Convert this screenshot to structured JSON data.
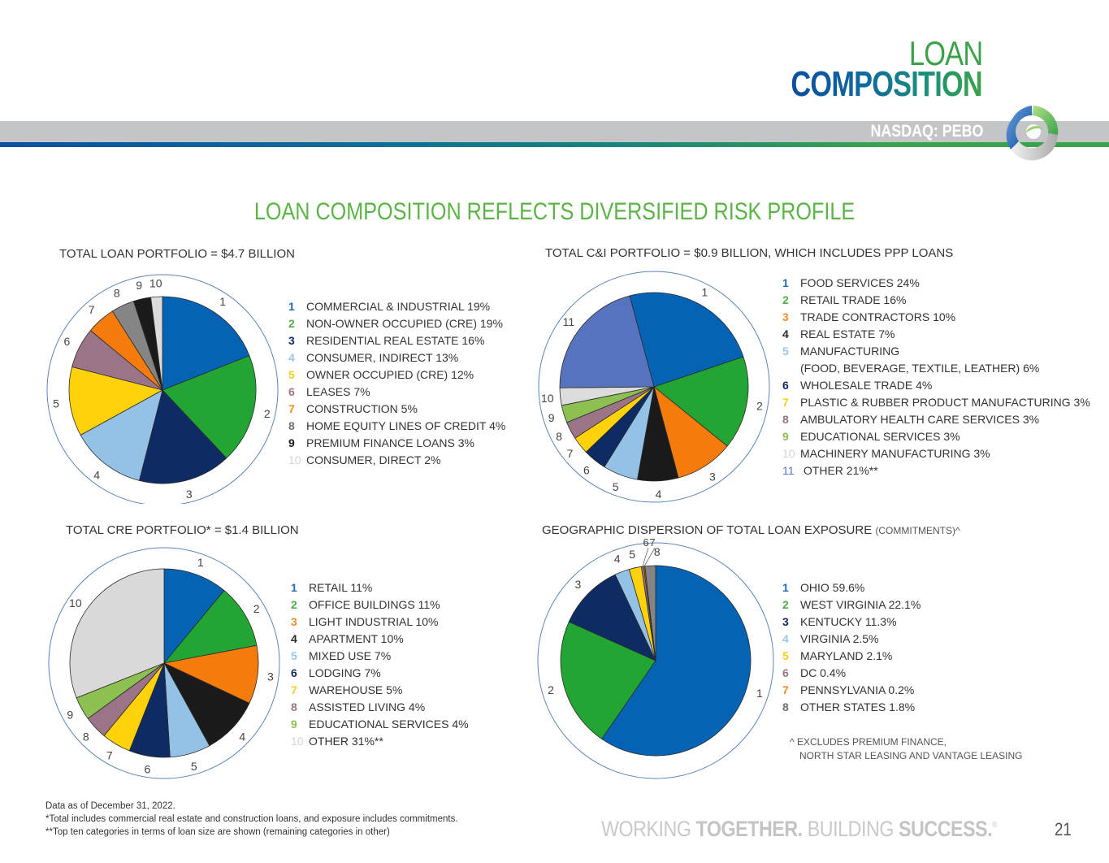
{
  "header": {
    "title_line1": "LOAN",
    "title_line2": "COMPOSITION",
    "ticker": "NASDAQ: PEBO",
    "logo": "peoples-bancorp-swirl-logo"
  },
  "main_heading": "LOAN COMPOSITION REFLECTS DIVERSIFIED RISK PROFILE",
  "colors": {
    "heading_green": "#5bb446",
    "brand_blue": "#0b4ea2",
    "brand_green": "#3aa34a",
    "outer_ring": "#5b86b8"
  },
  "chart_data": [
    {
      "type": "pie",
      "title": "TOTAL LOAN PORTFOLIO = $4.7 BILLION",
      "categories": [
        "COMMERCIAL & INDUSTRIAL",
        "NON-OWNER OCCUPIED (CRE)",
        "RESIDENTIAL REAL ESTATE",
        "CONSUMER, INDIRECT",
        "OWNER OCCUPIED (CRE)",
        "LEASES",
        "CONSTRUCTION",
        "HOME EQUITY LINES OF CREDIT",
        "PREMIUM FINANCE LOANS",
        "CONSUMER, DIRECT"
      ],
      "values": [
        19,
        19,
        16,
        13,
        12,
        7,
        5,
        4,
        3,
        2
      ],
      "unit": "%",
      "slice_labels": [
        "1",
        "2",
        "3",
        "4",
        "5",
        "6",
        "7",
        "8",
        "9",
        "10"
      ],
      "legend_numbers": [
        "1",
        "2",
        "3",
        "4",
        "5",
        "6",
        "7",
        "8",
        "9",
        "10"
      ],
      "legend_text": [
        "COMMERCIAL & INDUSTRIAL 19%",
        "NON-OWNER OCCUPIED (CRE) 19%",
        "RESIDENTIAL REAL ESTATE 16%",
        "CONSUMER, INDIRECT 13%",
        "OWNER OCCUPIED (CRE) 12%",
        "LEASES 7%",
        "CONSTRUCTION 5%",
        "HOME EQUITY LINES OF CREDIT 4%",
        "PREMIUM FINANCE LOANS 3%",
        "CONSUMER, DIRECT 2%"
      ],
      "colors": [
        "#0563b5",
        "#22a533",
        "#0e2c63",
        "#94c2e6",
        "#fdd20a",
        "#9b7488",
        "#f47b0c",
        "#858585",
        "#1a1a1a",
        "#dcdcdc"
      ],
      "number_colors": [
        "#1f6cb5",
        "#52ad46",
        "#0e2c63",
        "#9cc6e8",
        "#f6cf1c",
        "#9b7488",
        "#ee8a2c",
        "#707070",
        "#1a1a1a",
        "#d4d4d4"
      ],
      "start": "12 o'clock, clockwise",
      "legend": "right"
    },
    {
      "type": "pie",
      "title": "TOTAL C&I PORTFOLIO = $0.9 BILLION, WHICH INCLUDES PPP LOANS",
      "categories": [
        "FOOD SERVICES",
        "RETAIL TRADE",
        "TRADE CONTRACTORS",
        "REAL ESTATE",
        "MANUFACTURING (FOOD, BEVERAGE, TEXTILE, LEATHER)",
        "WHOLESALE TRADE",
        "PLASTIC & RUBBER PRODUCT MANUFACTURING",
        "AMBULATORY HEALTH CARE SERVICES",
        "EDUCATIONAL SERVICES",
        "MACHINERY MANUFACTURING",
        "OTHER"
      ],
      "values": [
        24,
        16,
        10,
        7,
        6,
        4,
        3,
        3,
        3,
        3,
        21
      ],
      "unit": "%",
      "slice_labels": [
        "1",
        "2",
        "3",
        "4",
        "5",
        "6",
        "7",
        "8",
        "9",
        "10",
        "11"
      ],
      "legend_numbers": [
        "1",
        "2",
        "3",
        "4",
        "5",
        "",
        "6",
        "7",
        "8",
        "9",
        "10",
        "11"
      ],
      "legend_text": [
        "FOOD SERVICES 24%",
        "RETAIL TRADE 16%",
        "TRADE CONTRACTORS 10%",
        "REAL ESTATE 7%",
        "MANUFACTURING",
        "(FOOD, BEVERAGE, TEXTILE, LEATHER) 6%",
        "WHOLESALE TRADE 4%",
        "PLASTIC & RUBBER PRODUCT MANUFACTURING 3%",
        "AMBULATORY HEALTH CARE SERVICES 3%",
        "EDUCATIONAL SERVICES 3%",
        "MACHINERY MANUFACTURING 3%",
        " OTHER 21%**"
      ],
      "colors": [
        "#0563b5",
        "#22a533",
        "#f47b0c",
        "#1a1a1a",
        "#94c2e6",
        "#0e2c63",
        "#fdd20a",
        "#9b7488",
        "#8cc152",
        "#dcdcdc",
        "#5873bd"
      ],
      "number_colors": [
        "#1f6cb5",
        "#52ad46",
        "#ee8a2c",
        "#2a2a2a",
        "#9cc6e8",
        "",
        "#0e2c63",
        "#f6cf1c",
        "#9b7488",
        "#8cc152",
        "#d4d4d4",
        "#5873bd"
      ],
      "start": "approx. -15 degrees from 12 o'clock, clockwise",
      "legend": "right"
    },
    {
      "type": "pie",
      "title": "TOTAL CRE PORTFOLIO* = $1.4 BILLION",
      "categories": [
        "RETAIL",
        "OFFICE BUILDINGS",
        "LIGHT INDUSTRIAL",
        "APARTMENT",
        "MIXED USE",
        "LODGING",
        "WAREHOUSE",
        "ASSISTED LIVING",
        "EDUCATIONAL SERVICES",
        "OTHER"
      ],
      "values": [
        11,
        11,
        10,
        10,
        7,
        7,
        5,
        4,
        4,
        31
      ],
      "unit": "%",
      "slice_labels": [
        "1",
        "2",
        "3",
        "4",
        "5",
        "6",
        "7",
        "8",
        "9",
        "10"
      ],
      "legend_numbers": [
        "1",
        "2",
        "3",
        "4",
        "5",
        "6",
        "7",
        "8",
        "9",
        "10"
      ],
      "legend_text": [
        "RETAIL 11%",
        "OFFICE BUILDINGS 11%",
        "LIGHT INDUSTRIAL 10%",
        "APARTMENT 10%",
        "MIXED USE 7%",
        "LODGING 7%",
        "WAREHOUSE 5%",
        "ASSISTED LIVING 4%",
        "EDUCATIONAL SERVICES 4%",
        "OTHER 31%**"
      ],
      "colors": [
        "#0563b5",
        "#22a533",
        "#f47b0c",
        "#1a1a1a",
        "#94c2e6",
        "#0e2c63",
        "#fdd20a",
        "#9b7488",
        "#8cc152",
        "#d9d9d9"
      ],
      "number_colors": [
        "#1f6cb5",
        "#52ad46",
        "#ee8a2c",
        "#2a2a2a",
        "#9cc6e8",
        "#0e2c63",
        "#f6cf1c",
        "#9b7488",
        "#8cc152",
        "#d4d4d4"
      ],
      "start": "12 o'clock, clockwise",
      "legend": "right"
    },
    {
      "type": "pie",
      "title": "GEOGRAPHIC DISPERSION OF TOTAL LOAN EXPOSURE",
      "title_suffix": "(COMMITMENTS)^",
      "categories": [
        "OHIO",
        "WEST VIRGINIA",
        "KENTUCKY",
        "VIRGINIA",
        "MARYLAND",
        "DC",
        "PENNSYLVANIA",
        "OTHER STATES"
      ],
      "values": [
        59.6,
        22.1,
        11.3,
        2.5,
        2.1,
        0.4,
        0.2,
        1.8
      ],
      "unit": "%",
      "slice_labels": [
        "1",
        "2",
        "3",
        "4",
        "5",
        "6",
        "7",
        "8"
      ],
      "legend_numbers": [
        "1",
        "2",
        "3",
        "4",
        "5",
        "6",
        "7",
        "8"
      ],
      "legend_text": [
        "OHIO 59.6%",
        "WEST VIRGINIA 22.1%",
        "KENTUCKY 11.3%",
        "VIRGINIA 2.5%",
        "MARYLAND 2.1%",
        "DC 0.4%",
        "PENNSYLVANIA 0.2%",
        "OTHER STATES 1.8%"
      ],
      "colors": [
        "#0563b5",
        "#22a533",
        "#0e2c63",
        "#94c2e6",
        "#fdd20a",
        "#9b7488",
        "#f47b0c",
        "#858585"
      ],
      "number_colors": [
        "#1f6cb5",
        "#52ad46",
        "#0e2c63",
        "#9cc6e8",
        "#f6cf1c",
        "#9b7488",
        "#ee8a2c",
        "#707070"
      ],
      "start": "12 o'clock, clockwise",
      "note": [
        "^ EXCLUDES PREMIUM FINANCE,",
        "NORTH STAR LEASING AND VANTAGE LEASING"
      ],
      "legend": "right"
    }
  ],
  "footnotes": [
    "Data as of December 31, 2022.",
    "*Total includes commercial real estate and construction loans, and exposure includes commitments.",
    "**Top ten categories in terms of loan size are shown (remaining categories in other)"
  ],
  "tagline": {
    "part1": "WORKING ",
    "part2": "TOGETHER.",
    "part3": " BUILDING ",
    "part4": "SUCCESS.",
    "mark": "®"
  },
  "page_number": "21"
}
